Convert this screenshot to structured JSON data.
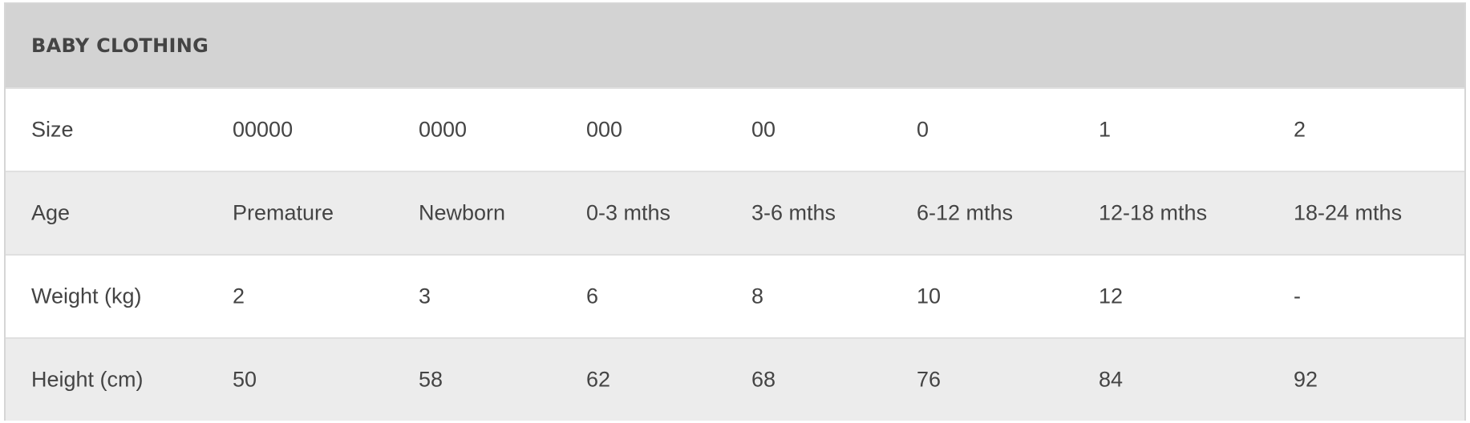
{
  "title": "BABY CLOTHING",
  "rows": [
    {
      "label": "Size",
      "values": [
        "00000",
        "0000",
        "000",
        "00",
        "0",
        "1",
        "2"
      ]
    },
    {
      "label": "Age",
      "values": [
        "Premature",
        "Newborn",
        "0-3 mths",
        "3-6 mths",
        "6-12 mths",
        "12-18 mths",
        "18-24 mths"
      ]
    },
    {
      "label": "Weight (kg)",
      "values": [
        "2",
        "3",
        "6",
        "8",
        "10",
        "12",
        "-"
      ]
    },
    {
      "label": "Height (cm)",
      "values": [
        "50",
        "58",
        "62",
        "68",
        "76",
        "84",
        "92"
      ]
    }
  ]
}
